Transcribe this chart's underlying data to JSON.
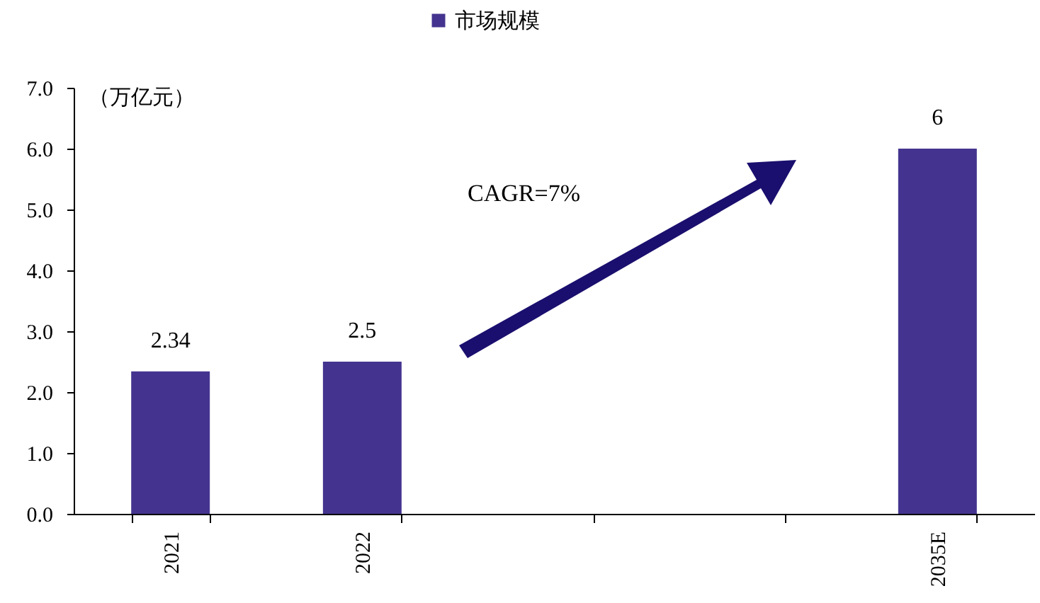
{
  "chart_data": {
    "type": "bar",
    "categories": [
      "2021",
      "2022",
      null,
      null,
      "2035E"
    ],
    "series": [
      {
        "name": "市场规模",
        "color": "#44348f",
        "values": [
          2.34,
          2.5,
          null,
          null,
          6
        ]
      }
    ],
    "ylabel": "（万亿元）",
    "ylim": [
      0,
      7
    ],
    "yticks": [
      {
        "value": 0,
        "label": "0.0"
      },
      {
        "value": 1,
        "label": "1.0"
      },
      {
        "value": 2,
        "label": "2.0"
      },
      {
        "value": 3,
        "label": "3.0"
      },
      {
        "value": 4,
        "label": "4.0"
      },
      {
        "value": 5,
        "label": "5.0"
      },
      {
        "value": 6,
        "label": "6.0"
      },
      {
        "value": 7,
        "label": "7.0"
      }
    ],
    "annotations": [
      "CAGR=7%"
    ],
    "data_labels": true,
    "legend": "top",
    "grid": false
  }
}
